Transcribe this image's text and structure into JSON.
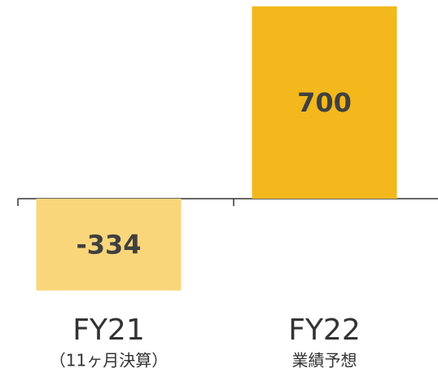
{
  "chart_data": {
    "type": "bar",
    "categories": [
      "FY21",
      "FY22"
    ],
    "category_sublabels": [
      "（11ヶ月決算）",
      "業績予想"
    ],
    "values": [
      -334,
      700
    ],
    "colors": [
      "#f9d679",
      "#f2b81c"
    ],
    "ylim": [
      -400,
      720
    ]
  }
}
